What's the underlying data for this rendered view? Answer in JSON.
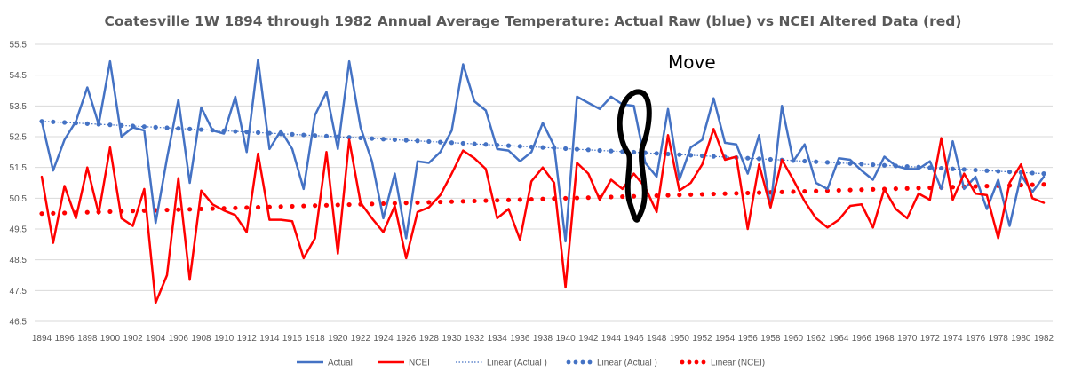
{
  "chart_data": {
    "type": "line",
    "title": "Coatesville 1W 1894 through 1982 Annual Average Temperature: Actual Raw (blue)  vs NCEI Altered Data (red)",
    "xlabel": "",
    "ylabel": "",
    "ylim": [
      46.5,
      55.5
    ],
    "yticks": [
      "46.5",
      "47.5",
      "48.5",
      "49.5",
      "50.5",
      "51.5",
      "52.5",
      "53.5",
      "54.5",
      "55.5"
    ],
    "x": [
      1894,
      1895,
      1896,
      1897,
      1898,
      1899,
      1900,
      1901,
      1902,
      1903,
      1904,
      1905,
      1906,
      1907,
      1908,
      1909,
      1910,
      1911,
      1912,
      1913,
      1914,
      1915,
      1916,
      1917,
      1918,
      1919,
      1920,
      1921,
      1922,
      1923,
      1924,
      1925,
      1926,
      1927,
      1928,
      1929,
      1930,
      1931,
      1932,
      1933,
      1934,
      1935,
      1936,
      1937,
      1938,
      1939,
      1940,
      1941,
      1942,
      1943,
      1944,
      1945,
      1946,
      1947,
      1948,
      1949,
      1950,
      1951,
      1952,
      1953,
      1954,
      1955,
      1956,
      1957,
      1958,
      1959,
      1960,
      1961,
      1962,
      1963,
      1964,
      1965,
      1966,
      1967,
      1968,
      1969,
      1970,
      1971,
      1972,
      1973,
      1974,
      1975,
      1976,
      1977,
      1978,
      1979,
      1980,
      1981,
      1982
    ],
    "xtick_labels": [
      "1894",
      "1896",
      "1898",
      "1900",
      "1902",
      "1904",
      "1906",
      "1908",
      "1910",
      "1912",
      "1914",
      "1916",
      "1918",
      "1920",
      "1922",
      "1924",
      "1926",
      "1928",
      "1930",
      "1932",
      "1934",
      "1936",
      "1938",
      "1940",
      "1942",
      "1944",
      "1946",
      "1948",
      "1950",
      "1952",
      "1954",
      "1956",
      "1958",
      "1960",
      "1962",
      "1964",
      "1966",
      "1968",
      "1970",
      "1972",
      "1974",
      "1976",
      "1978",
      "1980",
      "1982"
    ],
    "series": [
      {
        "name": "Actual",
        "color": "#4472c4",
        "style": "solid",
        "values": [
          53.0,
          51.4,
          52.4,
          53.0,
          54.1,
          52.9,
          54.95,
          52.5,
          52.8,
          52.7,
          49.7,
          51.8,
          53.7,
          51.0,
          53.45,
          52.7,
          52.6,
          53.8,
          52.0,
          55.0,
          52.1,
          52.7,
          52.1,
          50.8,
          53.2,
          53.95,
          52.1,
          54.95,
          52.8,
          51.7,
          49.85,
          51.3,
          49.2,
          51.7,
          51.65,
          52.0,
          52.7,
          54.85,
          53.65,
          53.35,
          52.1,
          52.05,
          51.7,
          52.0,
          52.95,
          52.2,
          49.1,
          53.8,
          53.6,
          53.4,
          53.8,
          53.55,
          53.5,
          51.65,
          51.2,
          53.4,
          51.1,
          52.15,
          52.4,
          53.75,
          52.3,
          52.25,
          51.3,
          52.55,
          50.2,
          53.5,
          51.7,
          52.25,
          51.0,
          50.8,
          51.8,
          51.75,
          51.4,
          51.1,
          51.85,
          51.55,
          51.45,
          51.45,
          51.7,
          50.8,
          52.35,
          50.8,
          51.2,
          50.15,
          51.1,
          49.6,
          51.25,
          50.7,
          51.2
        ]
      },
      {
        "name": "NCEI",
        "color": "#ff0000",
        "style": "solid",
        "values": [
          51.2,
          49.05,
          50.9,
          49.85,
          51.5,
          50.0,
          52.15,
          49.85,
          49.6,
          50.8,
          47.1,
          48.0,
          51.15,
          47.85,
          50.75,
          50.3,
          50.1,
          49.95,
          49.4,
          51.95,
          49.8,
          49.8,
          49.75,
          48.55,
          49.2,
          52.0,
          48.7,
          52.4,
          50.35,
          49.85,
          49.4,
          50.25,
          48.55,
          50.05,
          50.2,
          50.6,
          51.3,
          52.05,
          51.8,
          51.45,
          49.85,
          50.15,
          49.15,
          51.05,
          51.5,
          51.0,
          47.6,
          51.65,
          51.3,
          50.45,
          51.1,
          50.8,
          51.3,
          50.85,
          50.05,
          52.55,
          50.75,
          51.0,
          51.6,
          52.75,
          51.75,
          51.85,
          49.5,
          51.6,
          50.2,
          51.75,
          51.1,
          50.4,
          49.85,
          49.55,
          49.8,
          50.25,
          50.3,
          49.55,
          50.8,
          50.15,
          49.85,
          50.65,
          50.45,
          52.45,
          50.45,
          51.3,
          50.65,
          50.6,
          49.2,
          51.0,
          51.6,
          50.5,
          50.35
        ]
      },
      {
        "name": "Linear (Actual )",
        "color": "#4472c4",
        "style": "fine-dotted",
        "start": 53.0,
        "end": 51.3
      },
      {
        "name": "Linear (Actual )",
        "color": "#4472c4",
        "style": "round-dotted",
        "start": 53.0,
        "end": 51.3
      },
      {
        "name": "Linear (NCEI)",
        "color": "#ff0000",
        "style": "round-dotted",
        "start": 50.0,
        "end": 50.95
      }
    ],
    "legend": {
      "position": "bottom",
      "entries": [
        {
          "label": "Actual",
          "color": "#4472c4",
          "style": "solid"
        },
        {
          "label": "NCEI",
          "color": "#ff0000",
          "style": "solid"
        },
        {
          "label": "Linear (Actual )",
          "color": "#4472c4",
          "style": "fine-dotted"
        },
        {
          "label": "Linear (Actual )",
          "color": "#4472c4",
          "style": "round-dotted"
        },
        {
          "label": "Linear (NCEI)",
          "color": "#ff0000",
          "style": "round-dotted"
        }
      ]
    },
    "grid": true,
    "annotation": {
      "text": "Move",
      "shape": "hand-drawn black loop around 1945-1947",
      "color": "#000000",
      "x_range": [
        1945,
        1947
      ],
      "y_range": [
        49.8,
        54.0
      ]
    }
  }
}
